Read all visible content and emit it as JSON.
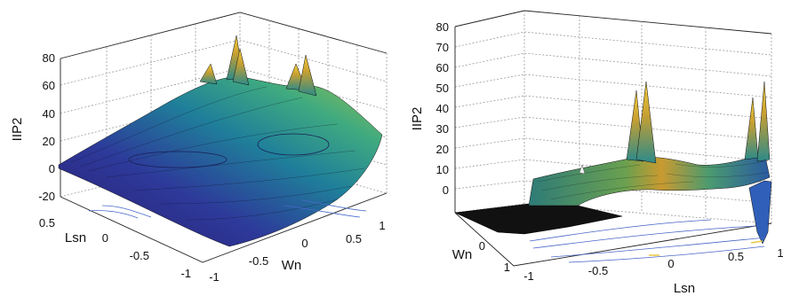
{
  "chart_data": [
    {
      "type": "surface",
      "zlabel": "IIP2",
      "ylabel": "Lsn",
      "xlabel": "Wn",
      "z_ticks": [
        "-20",
        "0",
        "20",
        "40",
        "60",
        "80"
      ],
      "y_ticks": [
        "0.5",
        "0",
        "-0.5",
        "-1"
      ],
      "x_ticks": [
        "-1",
        "-0.5",
        "0",
        "0.5",
        "1"
      ],
      "zlim": [
        -20,
        80
      ],
      "xlim": [
        -1,
        1
      ],
      "ylim": [
        -1,
        1
      ],
      "colormap": "parula",
      "contour_projection": true
    },
    {
      "type": "surface",
      "zlabel": "IIP2",
      "ylabel": "Wn",
      "xlabel": "Lsn",
      "z_ticks": [
        "0",
        "10",
        "20",
        "30",
        "40",
        "50",
        "60",
        "70",
        "80"
      ],
      "y_ticks": [
        "0",
        "1"
      ],
      "x_ticks": [
        "-1",
        "-0.5",
        "0",
        "0.5",
        "1"
      ],
      "zlim": [
        0,
        80
      ],
      "xlim": [
        -1,
        1
      ],
      "ylim": [
        -1,
        1
      ],
      "colormap": "parula",
      "contour_projection": true
    }
  ]
}
